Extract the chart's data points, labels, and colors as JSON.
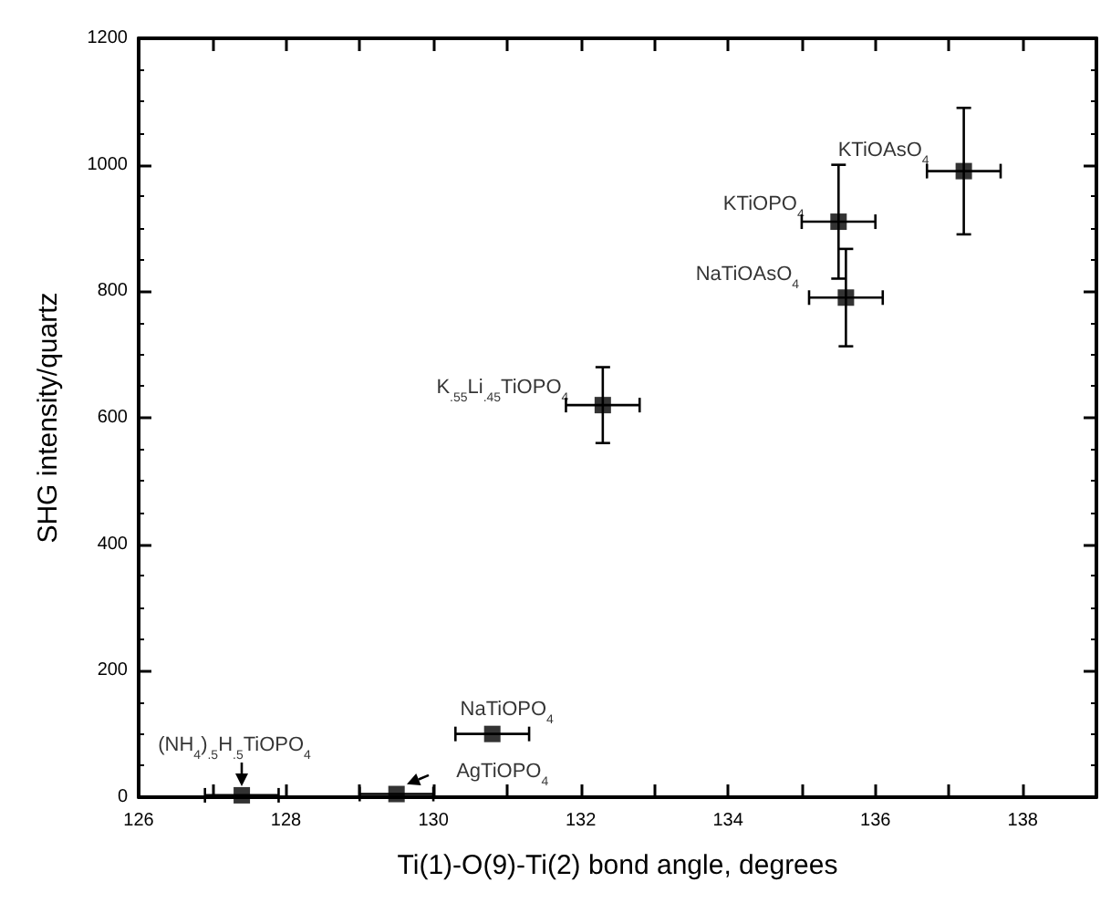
{
  "chart_data": {
    "type": "scatter",
    "xlabel": "Ti(1)-O(9)-Ti(2) bond angle, degrees",
    "ylabel": "SHG intensity/quartz",
    "x": [
      137.2,
      135.5,
      135.6,
      132.3,
      130.8,
      129.5,
      127.4
    ],
    "values": [
      990,
      910,
      790,
      620,
      100,
      5,
      3
    ],
    "errors": [
      100,
      90,
      77,
      60,
      null,
      null,
      null
    ],
    "xerrors": [
      0.5,
      0.5,
      0.5,
      0.5,
      0.5,
      0.5,
      0.5
    ],
    "color": "#000000",
    "marker": "square",
    "xlim": [
      126,
      139
    ],
    "xticks": [
      126,
      {
        "value": 127,
        "label": null
      },
      128,
      {
        "value": 129,
        "label": null
      },
      130,
      {
        "value": 131,
        "label": null
      },
      132,
      {
        "value": 133,
        "label": null
      },
      134,
      {
        "value": 135,
        "label": null
      },
      136,
      {
        "value": 137,
        "label": null
      },
      138,
      {
        "value": 139,
        "label": null
      }
    ],
    "ylim": [
      0,
      1200
    ],
    "yticks": [
      0,
      200,
      400,
      600,
      800,
      1000,
      1200
    ],
    "annotations": [
      {
        "text": "KTiOAsO$_{4}$",
        "x": 137.2,
        "y": 990
      },
      {
        "text": "KTiOPO$_{4}$",
        "x": 135.5,
        "y": 910
      },
      {
        "text": "NaTiOAsO$_{4}$",
        "x": 135.6,
        "y": 790
      },
      {
        "text": "K$_{.55}$Li$_{.45}$TiOPO$_{4}$",
        "x": 132.3,
        "y": 620
      },
      {
        "text": "NaTiOPO$_{4}$",
        "x": 130.8,
        "y": 100
      },
      {
        "text": "AgTiOPO$_{4}$",
        "x": 129.5,
        "y": 5
      },
      {
        "text": "(NH$_{4}$)$_{.5}$H$_{.5}$TiOPO$_{4}$",
        "x": 127.4,
        "y": 3
      }
    ]
  }
}
